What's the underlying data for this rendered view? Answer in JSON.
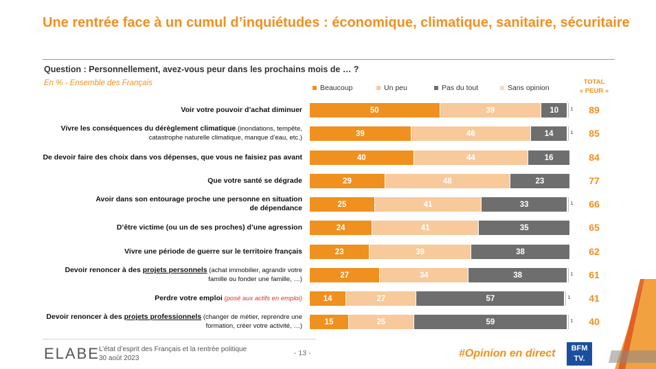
{
  "header": {
    "title": "Une rentrée face à un cumul d’inquiétudes : économique, climatique, sanitaire, sécuritaire",
    "question": "Question : Personnellement, avez-vous peur dans les prochains mois de … ?",
    "subtitle": "En % - Ensemble des Français",
    "total_line1": "TOTAL",
    "total_line2": "« PEUR »"
  },
  "colors": {
    "beaucoup": "#f0901e",
    "un_peu": "#f8c99a",
    "pas_du_tout": "#6e6e6e",
    "sans_opinion": "#f5dcc4",
    "accent": "#f0901e"
  },
  "chart_data": {
    "type": "bar",
    "orientation": "horizontal-stacked",
    "unit": "%",
    "series_names": [
      "Beaucoup",
      "Un peu",
      "Pas du tout",
      "Sans opinion"
    ],
    "rows": [
      {
        "main": "Voir votre pouvoir d’achat diminuer",
        "values": [
          50,
          39,
          10,
          1
        ],
        "total": 89
      },
      {
        "main": "Vivre les conséquences du dérèglement climatique",
        "note": "(inondations, tempête,",
        "line2": "catastrophe naturelle climatique, manque d’eau, etc.)",
        "values": [
          39,
          46,
          14,
          1
        ],
        "total": 85
      },
      {
        "main": "De devoir faire des choix dans vos dépenses, que vous ne faisiez pas avant",
        "values": [
          40,
          44,
          16,
          0
        ],
        "total": 84
      },
      {
        "main": "Que votre santé se dégrade",
        "values": [
          29,
          48,
          23,
          0
        ],
        "total": 77
      },
      {
        "main": "Avoir dans son entourage proche une personne en situation",
        "line2": "de dépendance",
        "values": [
          25,
          41,
          33,
          1
        ],
        "total": 66
      },
      {
        "main": "D’être victime (ou un de ses proches) d’une agression",
        "values": [
          24,
          41,
          35,
          0
        ],
        "total": 65
      },
      {
        "main": "Vivre une période de guerre sur le territoire français",
        "values": [
          23,
          39,
          38,
          0
        ],
        "total": 62
      },
      {
        "main_pre": "Devoir renoncer à des ",
        "main_u": "projets personnels",
        "note": " (achat immobilier, agrandir votre",
        "line2": "famille ou fonder une famille, …)",
        "values": [
          27,
          34,
          38,
          1
        ],
        "total": 61
      },
      {
        "main": "Perdre votre emploi",
        "note_red": " (posé aux actifs en emploi)",
        "values": [
          14,
          27,
          57,
          1
        ],
        "total": 41
      },
      {
        "main_pre": "Devoir renoncer à des ",
        "main_u": "projets professionnels",
        "note": " (changer de métier, reprendre une",
        "line2": "formation, créer votre activité, …)",
        "values": [
          15,
          25,
          59,
          1
        ],
        "total": 40
      }
    ]
  },
  "footer": {
    "logo": "ELABE",
    "line1": "L’état d’esprit des Français et la rentrée politique",
    "line2": "30 août 2023",
    "page": "- 13 -",
    "hashtag": "#Opinion en direct",
    "bfm_line1": "BFM",
    "bfm_line2": "TV."
  }
}
